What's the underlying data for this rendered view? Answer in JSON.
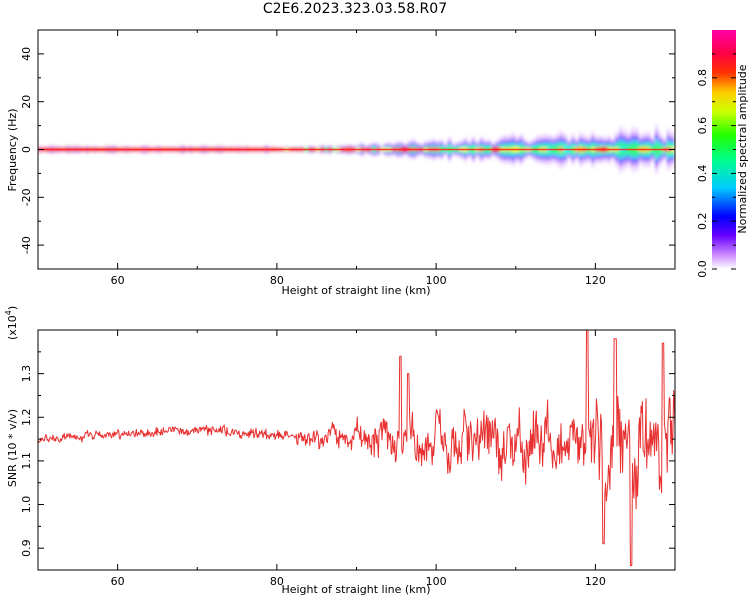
{
  "title": "C2E6.2023.323.03.58.R07",
  "chart_data": [
    {
      "type": "heatmap",
      "xlabel": "Height of straight line (km)",
      "ylabel": "Frequency (Hz)",
      "xlim": [
        50,
        130
      ],
      "ylim": [
        -50,
        50
      ],
      "xticks": [
        60,
        80,
        100,
        120
      ],
      "yticks": [
        -40,
        -20,
        0,
        20,
        40
      ],
      "band_center_hz": 0,
      "colorbar": {
        "label": "Normalized spectral amplitude",
        "range": [
          0,
          1
        ],
        "ticks": [
          "0.0",
          "0.2",
          "0.4",
          "0.6",
          "0.8"
        ],
        "colors": [
          "#ffffff",
          "#8800ff",
          "#0000ff",
          "#00ffff",
          "#00ff00",
          "#ffff00",
          "#ff0000",
          "#ff00aa"
        ]
      }
    },
    {
      "type": "line",
      "xlabel": "Height of straight line (km)",
      "ylabel": "SNR (10 * v/v)",
      "scale_label": "(x10",
      "scale_exp": "4",
      "scale_close": ")",
      "xlim": [
        50,
        130
      ],
      "ylim": [
        0.85,
        1.4
      ],
      "xticks": [
        60,
        80,
        100,
        120
      ],
      "yticks": [
        "0.9",
        "1.0",
        "1.1",
        "1.2",
        "1.3"
      ],
      "color": "#e83030",
      "profile": {
        "x": [
          50,
          60,
          70,
          80,
          85,
          90,
          95,
          100,
          105,
          110,
          115,
          120,
          125,
          130
        ],
        "mean": [
          1.15,
          1.16,
          1.17,
          1.16,
          1.15,
          1.16,
          1.15,
          1.14,
          1.14,
          1.14,
          1.13,
          1.14,
          1.13,
          1.15
        ],
        "amp": [
          0.015,
          0.018,
          0.02,
          0.025,
          0.04,
          0.05,
          0.08,
          0.09,
          0.1,
          0.11,
          0.12,
          0.16,
          0.17,
          0.17
        ]
      },
      "peaks": [
        [
          95.5,
          1.34
        ],
        [
          96.5,
          1.3
        ],
        [
          119,
          1.4
        ],
        [
          122.5,
          1.38
        ],
        [
          124.5,
          0.86
        ],
        [
          128.5,
          1.37
        ],
        [
          121,
          0.91
        ]
      ]
    }
  ]
}
